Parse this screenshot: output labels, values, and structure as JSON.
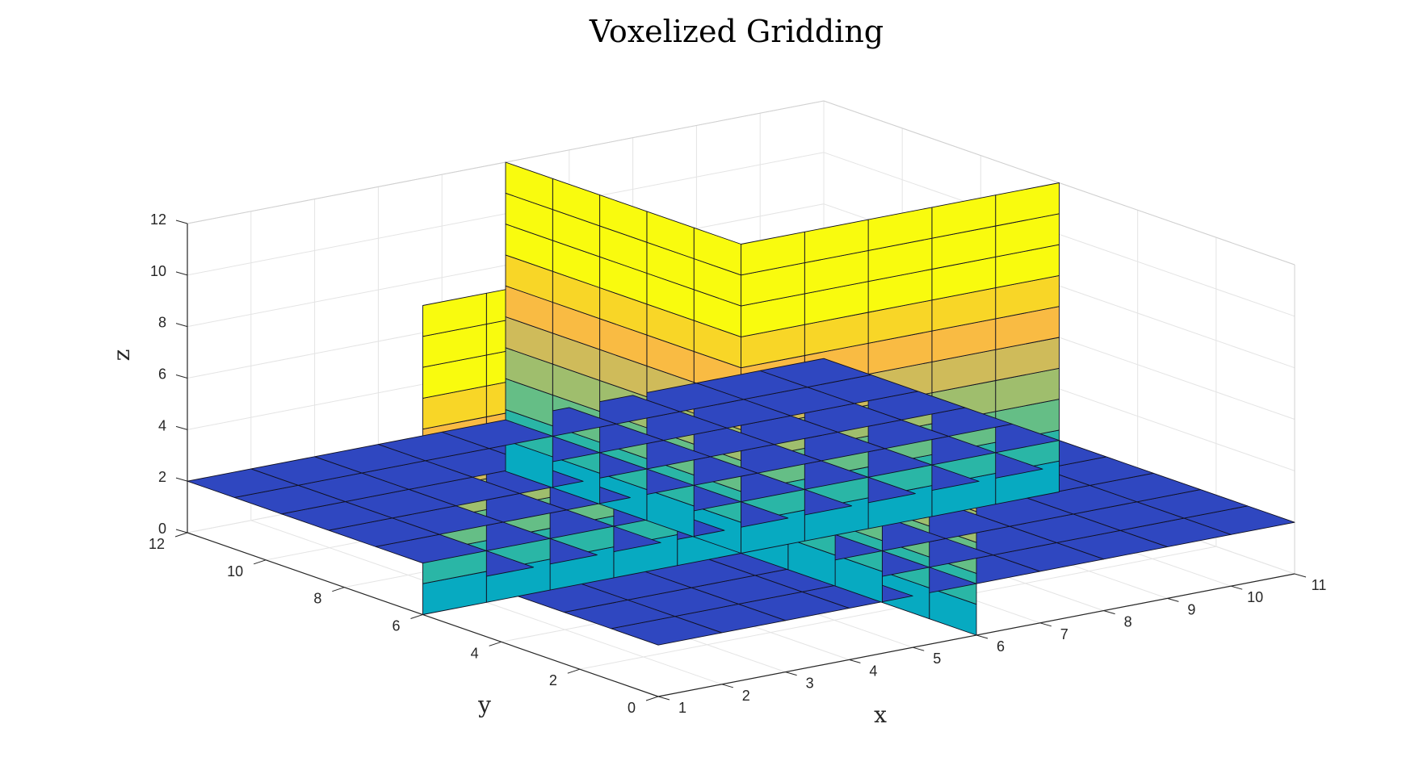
{
  "chart_data": {
    "type": "surface3d",
    "title": "Voxelized Gridding",
    "xlabel": "x",
    "ylabel": "y",
    "zlabel": "z",
    "xlim": [
      1,
      11
    ],
    "ylim": [
      0,
      12
    ],
    "zlim": [
      0,
      12
    ],
    "x_ticks": [
      1,
      2,
      3,
      4,
      5,
      6,
      7,
      8,
      9,
      10,
      11
    ],
    "y_ticks": [
      0,
      2,
      4,
      6,
      8,
      10,
      12
    ],
    "z_ticks": [
      0,
      2,
      4,
      6,
      8,
      10,
      12
    ],
    "x_tick_labels": [
      "1",
      "2",
      "3",
      "4",
      "5",
      "6",
      "7",
      "8",
      "9",
      "10",
      "11"
    ],
    "y_tick_labels": [
      "0",
      "2",
      "4",
      "6",
      "8",
      "10",
      "12"
    ],
    "z_tick_labels": [
      "0",
      "2",
      "4",
      "6",
      "8",
      "10",
      "12"
    ],
    "grid": true,
    "colormap": "parula",
    "color_limits": [
      1,
      15
    ],
    "surfaces": [
      {
        "name": "horizontal-slice",
        "plane": "z",
        "value": 2,
        "x_range": [
          1,
          11
        ],
        "y_range": [
          0,
          12
        ],
        "divisions": [
          10,
          10
        ],
        "color_by": "z"
      },
      {
        "name": "slice-x-6",
        "plane": "x",
        "value": 6,
        "y_range": [
          0,
          12
        ],
        "z_range": [
          0,
          12
        ],
        "divisions": [
          10,
          10
        ],
        "color_by": "x+z"
      },
      {
        "name": "slice-y-6",
        "plane": "y",
        "value": 6,
        "x_range": [
          1,
          11
        ],
        "z_range": [
          0,
          12
        ],
        "divisions": [
          10,
          10
        ],
        "color_by": "y+z"
      }
    ]
  }
}
